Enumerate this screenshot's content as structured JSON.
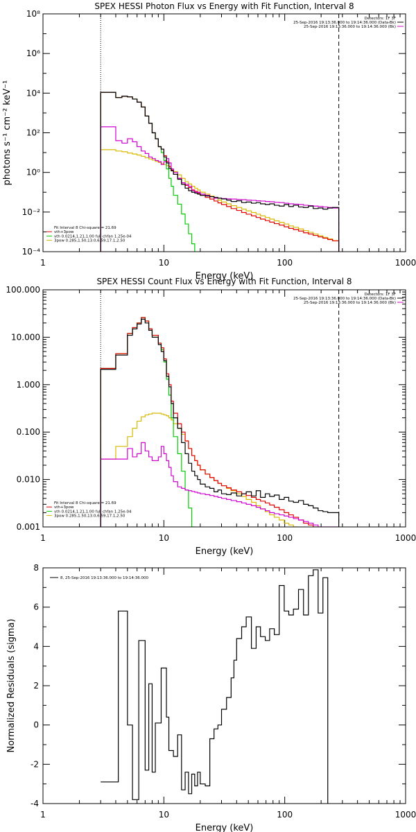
{
  "chart_data": [
    {
      "type": "line",
      "title": "SPEX HESSI Photon Flux vs Energy with Fit Function, Interval 8",
      "xlabel": "Energy (keV)",
      "ylabel": "photons s⁻¹ cm⁻² keV⁻¹",
      "xscale": "log",
      "yscale": "log",
      "xlim": [
        1,
        1000
      ],
      "ylim": [
        0.0001,
        100000000
      ],
      "xticks": [
        1,
        10,
        100,
        1000
      ],
      "xtick_labels": [
        "1",
        "10",
        "100",
        "1000"
      ],
      "yticks": [
        0.0001,
        0.01,
        1,
        100,
        10000,
        1000000,
        100000000
      ],
      "ytick_labels": [
        "10⁻⁴",
        "10⁻²",
        "10⁰",
        "10²",
        "10⁴",
        "10⁶",
        "10⁸"
      ],
      "vlines": [
        {
          "x": 3,
          "style": "dotted"
        },
        {
          "x": 280,
          "style": "dashed"
        }
      ],
      "legend_top_right": [
        {
          "text": "Detectors: 1F 3F",
          "color": "#000000"
        },
        {
          "text": "25-Sep-2016 19:13:36.000 to 19:14:36.000 (Data-Bk)",
          "color": "#000000"
        },
        {
          "text": "25-Sep-2016 19:13:36.000 to 19:14:36.000 (Bk)",
          "color": "#d000d0"
        }
      ],
      "legend_bottom_left": [
        {
          "text": "Fit Interval 8    Chi-square = 21.69",
          "color": "#000000"
        },
        {
          "text": "vth+3pow",
          "color": "#e00000"
        },
        {
          "text": "vth 0.0214,1.21,1.00  full chfan 1.25e-04",
          "color": "#00cc00"
        },
        {
          "text": "3pow 0.285,1.50,13.0,6.59,17.1,2.50",
          "color": "#d8b800"
        }
      ],
      "edges": [
        3,
        3.5,
        4,
        4.5,
        5,
        5.5,
        6,
        6.5,
        7,
        7.5,
        8,
        8.5,
        9,
        9.5,
        10,
        10.5,
        11,
        11.5,
        12,
        13,
        14,
        15,
        16,
        17,
        18,
        19,
        20,
        22,
        24,
        26,
        28,
        30,
        33,
        36,
        40,
        44,
        48,
        53,
        58,
        63,
        69,
        75,
        82,
        90,
        99,
        108,
        118,
        130,
        143,
        157,
        172,
        189,
        207,
        227,
        249,
        280
      ],
      "series": [
        {
          "name": "vth+3pow",
          "color": "#e00000",
          "values": [
            11000,
            11000,
            6000,
            7000,
            6500,
            5000,
            3500,
            2000,
            700,
            300,
            100,
            50,
            20,
            15,
            7,
            3.5,
            2,
            1.3,
            0.8,
            0.5,
            0.3,
            0.22,
            0.17,
            0.13,
            0.11,
            0.09,
            0.07,
            0.055,
            0.045,
            0.036,
            0.029,
            0.024,
            0.019,
            0.015,
            0.012,
            0.0095,
            0.0078,
            0.0064,
            0.0053,
            0.0044,
            0.0037,
            0.0031,
            0.0026,
            0.0022,
            0.0018,
            0.0015,
            0.0013,
            0.0011,
            0.0009,
            0.00078,
            0.00066,
            0.00056,
            0.00048,
            0.00041,
            0.00035
          ]
        },
        {
          "name": "vth",
          "color": "#00cc00",
          "values": [
            11000,
            11000,
            6000,
            7000,
            6500,
            5000,
            3500,
            2000,
            700,
            300,
            100,
            50,
            20,
            10,
            4,
            1.5,
            0.5,
            0.2,
            0.07,
            0.025,
            0.008,
            0.0025,
            0.0008,
            0.00025,
            8e-05
          ]
        },
        {
          "name": "3pow",
          "color": "#d8b800",
          "values": [
            14,
            14,
            12,
            11,
            9.5,
            8.5,
            7.5,
            6.5,
            5.5,
            4.8,
            4.2,
            3.6,
            3.2,
            2.8,
            2.5,
            2.2,
            1.9,
            1.5,
            1.1,
            0.75,
            0.5,
            0.34,
            0.26,
            0.2,
            0.16,
            0.13,
            0.1,
            0.08,
            0.064,
            0.05,
            0.04,
            0.032,
            0.026,
            0.021,
            0.017,
            0.014,
            0.0115,
            0.0095,
            0.0078,
            0.0064,
            0.0053,
            0.0044,
            0.0036,
            0.003,
            0.0025,
            0.002,
            0.0017,
            0.0014,
            0.00115,
            0.00095,
            0.00078,
            0.00064,
            0.00053,
            0.00044,
            0.00036
          ]
        },
        {
          "name": "Data-Bk",
          "color": "#000000",
          "values": [
            11000,
            11000,
            6000,
            7000,
            6500,
            5000,
            3500,
            2000,
            700,
            300,
            100,
            50,
            20,
            15,
            6,
            3,
            1.6,
            1.2,
            0.8,
            0.45,
            0.25,
            0.16,
            0.12,
            0.1,
            0.09,
            0.08,
            0.07,
            0.065,
            0.06,
            0.055,
            0.05,
            0.046,
            0.04,
            0.034,
            0.037,
            0.03,
            0.032,
            0.028,
            0.03,
            0.026,
            0.024,
            0.026,
            0.022,
            0.02,
            0.024,
            0.019,
            0.022,
            0.018,
            0.017,
            0.02,
            0.015,
            0.016,
            0.014,
            0.016,
            0.017
          ]
        },
        {
          "name": "Bk",
          "color": "#d000d0",
          "values": [
            200,
            200,
            40,
            30,
            50,
            35,
            20,
            12,
            9,
            6,
            5,
            4,
            3.5,
            2.5,
            3.5,
            5,
            3,
            1.5,
            1,
            0.5,
            0.3,
            0.25,
            0.2,
            0.12,
            0.1,
            0.1,
            0.08,
            0.07,
            0.06,
            0.05,
            0.05,
            0.048,
            0.046,
            0.045,
            0.043,
            0.042,
            0.04,
            0.039,
            0.037,
            0.036,
            0.034,
            0.033,
            0.031,
            0.03,
            0.028,
            0.026,
            0.025,
            0.024,
            0.022,
            0.021,
            0.02,
            0.019,
            0.018,
            0.017,
            0.016
          ]
        }
      ]
    },
    {
      "type": "line",
      "title": "SPEX HESSI Count Flux vs Energy with Fit Function, Interval 8",
      "xlabel": "Energy (keV)",
      "ylabel": "",
      "xscale": "log",
      "yscale": "log",
      "xlim": [
        1,
        1000
      ],
      "ylim": [
        0.001,
        100
      ],
      "xticks": [
        1,
        10,
        100,
        1000
      ],
      "xtick_labels": [
        "1",
        "10",
        "100",
        "1000"
      ],
      "yticks": [
        0.001,
        0.01,
        0.1,
        1,
        10,
        100
      ],
      "ytick_labels": [
        "0.001",
        "0.010",
        "0.100",
        "1.000",
        "10.000",
        "100.000"
      ],
      "vlines": [
        {
          "x": 3,
          "style": "dotted"
        },
        {
          "x": 280,
          "style": "dashed"
        }
      ],
      "legend_top_right": [
        {
          "text": "Detectors: 1F 3F",
          "color": "#000000"
        },
        {
          "text": "25-Sep-2016 19:13:36.000 to 19:14:36.000 (Data-Bk)",
          "color": "#000000"
        },
        {
          "text": "25-Sep-2016 19:13:36.000 to 19:14:36.000 (Bk)",
          "color": "#d000d0"
        }
      ],
      "legend_bottom_left": [
        {
          "text": "Fit Interval 8    Chi-square = 21.69",
          "color": "#000000"
        },
        {
          "text": "vth+3pow",
          "color": "#e00000"
        },
        {
          "text": "vth 0.0214,1.21,1.00  full chfan 1.25e-04",
          "color": "#00cc00"
        },
        {
          "text": "3pow 0.285,1.50,13.0,6.59,17.1,2.50",
          "color": "#d8b800"
        }
      ],
      "edges": [
        3,
        4,
        5,
        5.5,
        6,
        6.5,
        7,
        7.5,
        8,
        9,
        9.5,
        10,
        10.5,
        11,
        11.5,
        12,
        13,
        14,
        15,
        16,
        17,
        18,
        19,
        20,
        22,
        24,
        26,
        28,
        30,
        33,
        36,
        40,
        44,
        48,
        53,
        58,
        63,
        69,
        75,
        82,
        90,
        99,
        108,
        118,
        130,
        143,
        157,
        172,
        189,
        207,
        227,
        249,
        280
      ],
      "series": [
        {
          "name": "vth+3pow",
          "color": "#e00000",
          "values": [
            2.2,
            4.5,
            12,
            16,
            20,
            26,
            22,
            15,
            11,
            7.5,
            6,
            3.5,
            1.7,
            1,
            0.45,
            0.25,
            0.15,
            0.1,
            0.065,
            0.045,
            0.032,
            0.025,
            0.02,
            0.016,
            0.013,
            0.011,
            0.0095,
            0.0083,
            0.0074,
            0.0067,
            0.006,
            0.0055,
            0.005,
            0.0046,
            0.0042,
            0.0038,
            0.0035,
            0.0032,
            0.0029,
            0.0026,
            0.0023,
            0.002,
            0.0018,
            0.0016,
            0.0014,
            0.0012,
            0.0011,
            0.001,
            0.0009,
            0.0008,
            0.0007,
            0.0006
          ]
        },
        {
          "name": "vth",
          "color": "#00cc00",
          "values": [
            2.2,
            4.5,
            12,
            16,
            20,
            26,
            22,
            15,
            11,
            7.5,
            5.5,
            3,
            1.3,
            0.6,
            0.2,
            0.08,
            0.035,
            0.015,
            0.006,
            0.0025,
            0.001
          ]
        },
        {
          "name": "3pow",
          "color": "#d8b800",
          "values": [
            0.027,
            0.05,
            0.08,
            0.12,
            0.17,
            0.21,
            0.23,
            0.24,
            0.25,
            0.25,
            0.24,
            0.23,
            0.22,
            0.2,
            0.18,
            0.15,
            0.12,
            0.09,
            0.065,
            0.045,
            0.032,
            0.025,
            0.02,
            0.016,
            0.013,
            0.011,
            0.0095,
            0.0083,
            0.0074,
            0.0065,
            0.0058,
            0.005,
            0.0044,
            0.0038,
            0.0033,
            0.0028,
            0.0024,
            0.0021,
            0.0018,
            0.0016,
            0.0014,
            0.0012,
            0.0011,
            0.001
          ]
        },
        {
          "name": "Data-Bk",
          "color": "#000000",
          "values": [
            2.1,
            4.2,
            11,
            15,
            19,
            24,
            20,
            14,
            10,
            7,
            5,
            3.2,
            1.5,
            0.9,
            0.4,
            0.2,
            0.12,
            0.06,
            0.035,
            0.022,
            0.015,
            0.012,
            0.01,
            0.008,
            0.007,
            0.0065,
            0.0055,
            0.006,
            0.005,
            0.0048,
            0.0052,
            0.0045,
            0.005,
            0.0055,
            0.0045,
            0.0058,
            0.0042,
            0.005,
            0.0044,
            0.0047,
            0.0038,
            0.0042,
            0.0035,
            0.0033,
            0.0036,
            0.003,
            0.0028,
            0.0025,
            0.0022,
            0.0021,
            0.002,
            0.002
          ]
        },
        {
          "name": "Bk",
          "color": "#d000d0",
          "values": [
            0.027,
            0.027,
            0.045,
            0.03,
            0.035,
            0.06,
            0.04,
            0.03,
            0.025,
            0.03,
            0.05,
            0.035,
            0.025,
            0.018,
            0.012,
            0.009,
            0.007,
            0.0065,
            0.006,
            0.0058,
            0.0056,
            0.0054,
            0.0052,
            0.005,
            0.0048,
            0.0046,
            0.0044,
            0.0042,
            0.004,
            0.0038,
            0.0036,
            0.0034,
            0.0032,
            0.003,
            0.0028,
            0.0026,
            0.0024,
            0.0022,
            0.002,
            0.0019,
            0.0018,
            0.0017,
            0.0016,
            0.0015,
            0.0014,
            0.0013,
            0.0012,
            0.0011,
            0.001,
            0.001,
            0.001,
            0.001
          ]
        }
      ]
    },
    {
      "type": "line",
      "title": "",
      "xlabel": "Energy (keV)",
      "ylabel": "Normalized Residuals (sigma)",
      "xscale": "log",
      "yscale": "linear",
      "xlim": [
        1,
        1000
      ],
      "ylim": [
        -4,
        8
      ],
      "xticks": [
        1,
        10,
        100,
        1000
      ],
      "xtick_labels": [
        "1",
        "10",
        "100",
        "1000"
      ],
      "yticks": [
        -4,
        -2,
        0,
        2,
        4,
        6,
        8
      ],
      "ytick_labels": [
        "-4",
        "-2",
        "0",
        "2",
        "4",
        "6",
        "8"
      ],
      "legend": [
        {
          "text": "8, 25-Sep-2016 19:13:36.000 to 19:14:36.000",
          "color": "#000000"
        }
      ],
      "edges": [
        3,
        4.2,
        5,
        5.5,
        6.2,
        7,
        7.5,
        8,
        8.5,
        9.5,
        10.5,
        11,
        12,
        13,
        14,
        15,
        16,
        17,
        18,
        19,
        20,
        22,
        24,
        26,
        28,
        30,
        33,
        36,
        38,
        40,
        44,
        48,
        53,
        58,
        63,
        69,
        75,
        82,
        90,
        99,
        108,
        118,
        130,
        143,
        157,
        172,
        189,
        207,
        227,
        249,
        280
      ],
      "series": [
        {
          "name": "residuals",
          "color": "#000000",
          "values": [
            -2.9,
            5.8,
            0,
            -3.8,
            4.3,
            -2.3,
            2.1,
            -2.4,
            0.1,
            2.9,
            0.4,
            -1.3,
            -1.6,
            -0.5,
            -3.3,
            -2.4,
            -3.5,
            -2.5,
            -3.1,
            -2.4,
            -3.0,
            -3.1,
            -0.7,
            -0.2,
            0,
            0.8,
            1.4,
            2.4,
            3.3,
            4.4,
            5.0,
            5.5,
            3.9,
            5.0,
            4.5,
            4.3,
            4.9,
            4.6,
            7.1,
            5.8,
            5.6,
            5.9,
            6.9,
            5.6,
            7.6,
            7.9,
            5.7,
            7.5
          ]
        }
      ]
    }
  ]
}
